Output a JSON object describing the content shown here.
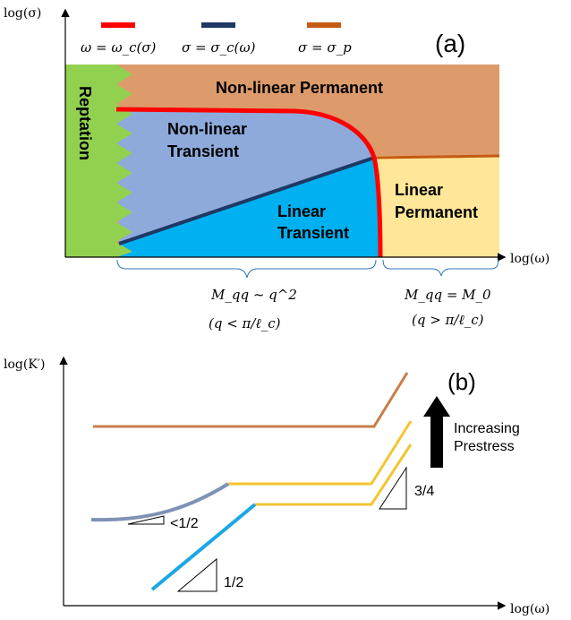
{
  "panel_a": {
    "label": "(a)",
    "y_axis_label": "log(σ)",
    "x_axis_label": "log(ω)",
    "legend": [
      {
        "text": "ω = ω_c(σ)",
        "color": "#ff0000"
      },
      {
        "text": "σ = σ_c(ω)",
        "color": "#1f3864"
      },
      {
        "text": "σ = σ_p",
        "color": "#c55a11"
      }
    ],
    "regions": {
      "reptation": "Reptation",
      "nonlinear_permanent": "Non-linear Permanent",
      "nonlinear_transient_1": "Non-linear",
      "nonlinear_transient_2": "Transient",
      "linear_transient_1": "Linear",
      "linear_transient_2": "Transient",
      "linear_permanent_1": "Linear",
      "linear_permanent_2": "Permanent"
    },
    "colors": {
      "reptation": "#92d050",
      "nonlinear_permanent": "#dd9b6c",
      "nonlinear_transient": "#8eaadb",
      "linear_transient": "#00b0f0",
      "linear_permanent": "#ffe699",
      "brace": "#2e75b6"
    },
    "brace_left": {
      "line1": "M_qq ~ q^2",
      "line2": "(q < π/ℓ_c)"
    },
    "brace_right": {
      "line1": "M_qq = M_0",
      "line2": "(q > π/ℓ_c)"
    }
  },
  "panel_b": {
    "label": "(b)",
    "y_axis_label": "log(K′)",
    "x_axis_label": "log(ω)",
    "arrow_text_1": "Increasing",
    "arrow_text_2": "Prestress",
    "slopes": {
      "half_small": "<1/2",
      "half": "1/2",
      "three_quarter": "3/4"
    },
    "colors": {
      "top_curve": "#c97c47",
      "yellow_curve": "#f5c431",
      "gray_blue_curve": "#7f91b5",
      "blue_curve": "#1aa7e6"
    }
  }
}
